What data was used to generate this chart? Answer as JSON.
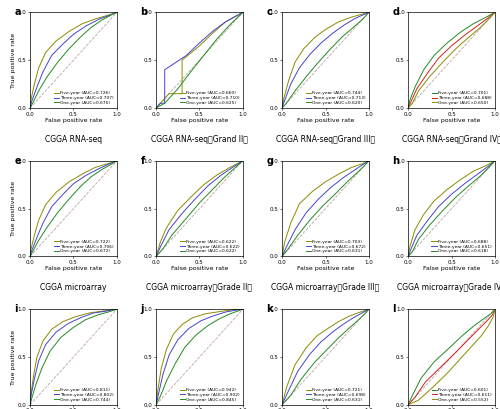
{
  "panels": [
    {
      "label": "a",
      "title": "CGGA RNA-seq",
      "subtitle": null,
      "legend": [
        "Five-year (AUC=0.726)",
        "Three-year (AUC=0.707)",
        "One-year (AUC=0.675)"
      ],
      "colors": [
        "#8B8B00",
        "#4444CC",
        "#228B22"
      ],
      "curves": [
        [
          [
            0,
            0.01,
            0.05,
            0.1,
            0.18,
            0.3,
            0.45,
            0.6,
            0.75,
            0.9,
            1.0
          ],
          [
            0,
            0.08,
            0.25,
            0.42,
            0.58,
            0.7,
            0.8,
            0.88,
            0.93,
            0.97,
            1.0
          ]
        ],
        [
          [
            0,
            0.02,
            0.08,
            0.15,
            0.25,
            0.38,
            0.5,
            0.65,
            0.8,
            0.92,
            1.0
          ],
          [
            0,
            0.07,
            0.22,
            0.38,
            0.55,
            0.67,
            0.77,
            0.86,
            0.93,
            0.97,
            1.0
          ]
        ],
        [
          [
            0,
            0.03,
            0.1,
            0.2,
            0.32,
            0.45,
            0.58,
            0.7,
            0.83,
            0.93,
            1.0
          ],
          [
            0,
            0.05,
            0.18,
            0.33,
            0.48,
            0.62,
            0.74,
            0.84,
            0.92,
            0.97,
            1.0
          ]
        ]
      ]
    },
    {
      "label": "b",
      "title": "CGGA RNA-seq（Grand II）",
      "subtitle": null,
      "legend": [
        "Five-year (AUC=0.660)",
        "Three-year (AUC=0.710)",
        "One-year (AUC=0.625)"
      ],
      "colors": [
        "#8B8B00",
        "#4444CC",
        "#228B22"
      ],
      "curves": [
        [
          [
            0,
            0.05,
            0.15,
            0.3,
            0.3,
            0.5,
            0.65,
            0.8,
            1.0
          ],
          [
            0,
            0.05,
            0.15,
            0.15,
            0.5,
            0.65,
            0.78,
            0.9,
            1.0
          ]
        ],
        [
          [
            0,
            0.05,
            0.1,
            0.1,
            0.35,
            0.5,
            0.65,
            0.8,
            1.0
          ],
          [
            0,
            0.05,
            0.05,
            0.4,
            0.55,
            0.68,
            0.8,
            0.9,
            1.0
          ]
        ],
        [
          [
            0,
            0.1,
            0.25,
            0.4,
            0.55,
            0.7,
            0.85,
            1.0
          ],
          [
            0,
            0.05,
            0.2,
            0.38,
            0.55,
            0.72,
            0.87,
            1.0
          ]
        ]
      ]
    },
    {
      "label": "c",
      "title": "CGGA RNA-seq（Grand III）",
      "subtitle": null,
      "legend": [
        "Five-year (AUC=0.744)",
        "Three-year (AUC=0.713)",
        "One-year (AUC=0.620)"
      ],
      "colors": [
        "#8B8B00",
        "#4444CC",
        "#228B22"
      ],
      "curves": [
        [
          [
            0,
            0.02,
            0.08,
            0.15,
            0.25,
            0.38,
            0.5,
            0.65,
            0.8,
            1.0
          ],
          [
            0,
            0.1,
            0.3,
            0.48,
            0.62,
            0.74,
            0.82,
            0.9,
            0.95,
            1.0
          ]
        ],
        [
          [
            0,
            0.03,
            0.1,
            0.2,
            0.32,
            0.45,
            0.58,
            0.72,
            0.85,
            1.0
          ],
          [
            0,
            0.08,
            0.25,
            0.42,
            0.56,
            0.68,
            0.78,
            0.87,
            0.94,
            1.0
          ]
        ],
        [
          [
            0,
            0.05,
            0.15,
            0.28,
            0.42,
            0.56,
            0.7,
            0.83,
            0.93,
            1.0
          ],
          [
            0,
            0.05,
            0.18,
            0.33,
            0.48,
            0.62,
            0.75,
            0.85,
            0.93,
            1.0
          ]
        ]
      ]
    },
    {
      "label": "d",
      "title": "CGGA RNA-seq（Grand IV）",
      "subtitle": null,
      "legend": [
        "Five-year (AUC=0.701)",
        "Three-year (AUC=0.688)",
        "One-year (AUC=0.650)"
      ],
      "colors": [
        "#228B22",
        "#CC2222",
        "#8B8B00"
      ],
      "curves": [
        [
          [
            0,
            0.02,
            0.08,
            0.18,
            0.3,
            0.45,
            0.6,
            0.75,
            0.9,
            1.0
          ],
          [
            0,
            0.08,
            0.22,
            0.4,
            0.55,
            0.68,
            0.79,
            0.88,
            0.95,
            1.0
          ]
        ],
        [
          [
            0,
            0.03,
            0.1,
            0.22,
            0.35,
            0.5,
            0.65,
            0.8,
            0.92,
            1.0
          ],
          [
            0,
            0.06,
            0.2,
            0.36,
            0.52,
            0.65,
            0.76,
            0.86,
            0.94,
            1.0
          ]
        ],
        [
          [
            0,
            0.05,
            0.12,
            0.25,
            0.4,
            0.55,
            0.7,
            0.83,
            0.93,
            1.0
          ],
          [
            0,
            0.05,
            0.18,
            0.33,
            0.48,
            0.62,
            0.74,
            0.84,
            0.93,
            1.0
          ]
        ]
      ]
    },
    {
      "label": "e",
      "title": "CGGA microarray",
      "subtitle": null,
      "legend": [
        "Five-year (AUC=0.722)",
        "Three-year (AUC=0.706)",
        "One-year (AUC=0.672)"
      ],
      "colors": [
        "#8B8B00",
        "#4444CC",
        "#228B22"
      ],
      "curves": [
        [
          [
            0,
            0.01,
            0.05,
            0.1,
            0.18,
            0.3,
            0.45,
            0.6,
            0.75,
            0.9,
            1.0
          ],
          [
            0,
            0.07,
            0.22,
            0.38,
            0.54,
            0.67,
            0.78,
            0.86,
            0.93,
            0.97,
            1.0
          ]
        ],
        [
          [
            0,
            0.02,
            0.08,
            0.15,
            0.25,
            0.38,
            0.5,
            0.65,
            0.8,
            0.92,
            1.0
          ],
          [
            0,
            0.06,
            0.2,
            0.35,
            0.52,
            0.65,
            0.76,
            0.85,
            0.92,
            0.97,
            1.0
          ]
        ],
        [
          [
            0,
            0.03,
            0.1,
            0.2,
            0.32,
            0.45,
            0.58,
            0.7,
            0.83,
            0.93,
            1.0
          ],
          [
            0,
            0.05,
            0.17,
            0.31,
            0.46,
            0.6,
            0.73,
            0.83,
            0.91,
            0.96,
            1.0
          ]
        ]
      ]
    },
    {
      "label": "f",
      "title": "CGGA microarray（Grade II）",
      "subtitle": null,
      "legend": [
        "Five-year (AUC=0.622)",
        "Three-year (AUC=0.622)",
        "One-year (AUC=0.622)"
      ],
      "colors": [
        "#8B8B00",
        "#4444CC",
        "#228B22"
      ],
      "curves": [
        [
          [
            0,
            0.05,
            0.12,
            0.25,
            0.4,
            0.55,
            0.7,
            0.85,
            1.0
          ],
          [
            0,
            0.15,
            0.3,
            0.48,
            0.62,
            0.75,
            0.85,
            0.93,
            1.0
          ]
        ],
        [
          [
            0,
            0.05,
            0.15,
            0.3,
            0.45,
            0.6,
            0.75,
            0.88,
            1.0
          ],
          [
            0,
            0.1,
            0.28,
            0.45,
            0.6,
            0.74,
            0.85,
            0.93,
            1.0
          ]
        ],
        [
          [
            0,
            0.08,
            0.18,
            0.35,
            0.5,
            0.65,
            0.78,
            0.9,
            1.0
          ],
          [
            0,
            0.08,
            0.22,
            0.4,
            0.56,
            0.7,
            0.82,
            0.92,
            1.0
          ]
        ]
      ]
    },
    {
      "label": "g",
      "title": "CGGA microarray（Grade III）",
      "subtitle": null,
      "legend": [
        "Five-year (AUC=0.703)",
        "Three-year (AUC=0.672)",
        "One-year (AUC=0.631)"
      ],
      "colors": [
        "#8B8B00",
        "#4444CC",
        "#228B22"
      ],
      "curves": [
        [
          [
            0,
            0.03,
            0.1,
            0.2,
            0.35,
            0.5,
            0.65,
            0.8,
            0.93,
            1.0
          ],
          [
            0,
            0.15,
            0.35,
            0.55,
            0.68,
            0.78,
            0.86,
            0.93,
            0.97,
            1.0
          ]
        ],
        [
          [
            0,
            0.05,
            0.15,
            0.28,
            0.42,
            0.56,
            0.7,
            0.83,
            0.93,
            1.0
          ],
          [
            0,
            0.1,
            0.28,
            0.46,
            0.6,
            0.72,
            0.82,
            0.9,
            0.96,
            1.0
          ]
        ],
        [
          [
            0,
            0.07,
            0.18,
            0.32,
            0.47,
            0.62,
            0.75,
            0.87,
            0.95,
            1.0
          ],
          [
            0,
            0.08,
            0.22,
            0.38,
            0.53,
            0.66,
            0.78,
            0.88,
            0.95,
            1.0
          ]
        ]
      ]
    },
    {
      "label": "h",
      "title": "CGGA microarray（Grade IV）",
      "subtitle": null,
      "legend": [
        "Five-year (AUC=0.688)",
        "Three-year (AUC=0.651)",
        "One-year (AUC=0.618)"
      ],
      "colors": [
        "#8B8B00",
        "#4444CC",
        "#228B22"
      ],
      "curves": [
        [
          [
            0,
            0.02,
            0.08,
            0.18,
            0.3,
            0.45,
            0.6,
            0.75,
            0.9,
            1.0
          ],
          [
            0,
            0.1,
            0.28,
            0.44,
            0.58,
            0.7,
            0.8,
            0.89,
            0.95,
            1.0
          ]
        ],
        [
          [
            0,
            0.03,
            0.1,
            0.22,
            0.35,
            0.5,
            0.65,
            0.8,
            0.92,
            1.0
          ],
          [
            0,
            0.07,
            0.22,
            0.37,
            0.52,
            0.65,
            0.76,
            0.86,
            0.94,
            1.0
          ]
        ],
        [
          [
            0,
            0.05,
            0.12,
            0.25,
            0.4,
            0.55,
            0.7,
            0.83,
            0.93,
            1.0
          ],
          [
            0,
            0.05,
            0.18,
            0.33,
            0.48,
            0.62,
            0.74,
            0.84,
            0.93,
            1.0
          ]
        ]
      ]
    },
    {
      "label": "i",
      "title": "TCGA RNA-seq",
      "subtitle": null,
      "legend": [
        "Five-year (AUC=0.811)",
        "Three-year (AUC=0.802)",
        "One-year (AUC=0.744)"
      ],
      "colors": [
        "#8B8B00",
        "#4444CC",
        "#228B22"
      ],
      "curves": [
        [
          [
            0,
            0.01,
            0.04,
            0.08,
            0.15,
            0.25,
            0.38,
            0.52,
            0.68,
            0.84,
            1.0
          ],
          [
            0,
            0.1,
            0.3,
            0.5,
            0.67,
            0.79,
            0.87,
            0.92,
            0.96,
            0.98,
            1.0
          ]
        ],
        [
          [
            0,
            0.01,
            0.05,
            0.1,
            0.18,
            0.3,
            0.44,
            0.58,
            0.73,
            0.88,
            1.0
          ],
          [
            0,
            0.09,
            0.27,
            0.46,
            0.63,
            0.76,
            0.85,
            0.91,
            0.96,
            0.98,
            1.0
          ]
        ],
        [
          [
            0,
            0.02,
            0.07,
            0.14,
            0.23,
            0.35,
            0.5,
            0.64,
            0.78,
            0.9,
            1.0
          ],
          [
            0,
            0.07,
            0.22,
            0.39,
            0.56,
            0.7,
            0.81,
            0.89,
            0.94,
            0.97,
            1.0
          ]
        ]
      ]
    },
    {
      "label": "j",
      "title": "TCGA RNA-seq（Grade II）",
      "subtitle": null,
      "legend": [
        "Five-year (AUC=0.942)",
        "Three-year (AUC=0.902)",
        "One-year (AUC=0.845)"
      ],
      "colors": [
        "#8B8B00",
        "#4444CC",
        "#228B22"
      ],
      "curves": [
        [
          [
            0,
            0.02,
            0.06,
            0.12,
            0.2,
            0.3,
            0.42,
            0.56,
            0.7,
            0.85,
            1.0
          ],
          [
            0,
            0.15,
            0.38,
            0.58,
            0.74,
            0.84,
            0.91,
            0.95,
            0.97,
            0.99,
            1.0
          ]
        ],
        [
          [
            0,
            0.03,
            0.08,
            0.15,
            0.25,
            0.38,
            0.52,
            0.66,
            0.8,
            0.92,
            1.0
          ],
          [
            0,
            0.12,
            0.32,
            0.52,
            0.68,
            0.8,
            0.88,
            0.93,
            0.97,
            0.99,
            1.0
          ]
        ],
        [
          [
            0,
            0.05,
            0.12,
            0.22,
            0.33,
            0.46,
            0.6,
            0.73,
            0.85,
            0.94,
            1.0
          ],
          [
            0,
            0.09,
            0.25,
            0.43,
            0.6,
            0.73,
            0.83,
            0.9,
            0.95,
            0.98,
            1.0
          ]
        ]
      ]
    },
    {
      "label": "k",
      "title": "TCGA RNA-seq（Grade III）",
      "subtitle": null,
      "legend": [
        "Five-year (AUC=0.721)",
        "Three-year (AUC=0.698)",
        "One-year (AUC=0.631)"
      ],
      "colors": [
        "#8B8B00",
        "#4444CC",
        "#228B22"
      ],
      "curves": [
        [
          [
            0,
            0.05,
            0.15,
            0.28,
            0.4,
            0.53,
            0.65,
            0.78,
            0.9,
            1.0
          ],
          [
            0,
            0.18,
            0.42,
            0.6,
            0.72,
            0.8,
            0.87,
            0.93,
            0.97,
            1.0
          ]
        ],
        [
          [
            0,
            0.07,
            0.18,
            0.32,
            0.45,
            0.58,
            0.7,
            0.82,
            0.92,
            1.0
          ],
          [
            0,
            0.14,
            0.35,
            0.53,
            0.66,
            0.76,
            0.84,
            0.91,
            0.96,
            1.0
          ]
        ],
        [
          [
            0,
            0.1,
            0.22,
            0.37,
            0.52,
            0.65,
            0.77,
            0.87,
            0.95,
            1.0
          ],
          [
            0,
            0.1,
            0.27,
            0.44,
            0.58,
            0.7,
            0.8,
            0.88,
            0.95,
            1.0
          ]
        ]
      ]
    },
    {
      "label": "l",
      "title": "TCGA RNA-seq（Grade IV）",
      "subtitle": null,
      "legend": [
        "Five-year (AUC=0.601)",
        "Three-year (AUC=0.611)",
        "One-year (AUC=0.552)"
      ],
      "colors": [
        "#228B22",
        "#CC2222",
        "#8B8B00"
      ],
      "curves": [
        [
          [
            0,
            0.05,
            0.15,
            0.3,
            0.48,
            0.62,
            0.75,
            0.87,
            0.95,
            1.0
          ],
          [
            0,
            0.1,
            0.28,
            0.45,
            0.6,
            0.72,
            0.82,
            0.9,
            0.95,
            1.0
          ]
        ],
        [
          [
            0,
            0.08,
            0.2,
            0.38,
            0.55,
            0.68,
            0.8,
            0.9,
            0.97,
            1.0
          ],
          [
            0,
            0.08,
            0.24,
            0.4,
            0.55,
            0.67,
            0.78,
            0.87,
            0.94,
            1.0
          ]
        ],
        [
          [
            0,
            0.12,
            0.28,
            0.45,
            0.6,
            0.73,
            0.84,
            0.92,
            0.98,
            1.0
          ],
          [
            0,
            0.05,
            0.18,
            0.33,
            0.48,
            0.61,
            0.72,
            0.82,
            0.92,
            1.0
          ]
        ]
      ]
    }
  ],
  "diag_line_color": "#C0A0A0",
  "axis_label_fontsize": 4.5,
  "tick_fontsize": 4,
  "legend_fontsize": 3.2,
  "title_fontsize": 5.5,
  "panel_label_fontsize": 7,
  "figure_bg": "#ffffff"
}
